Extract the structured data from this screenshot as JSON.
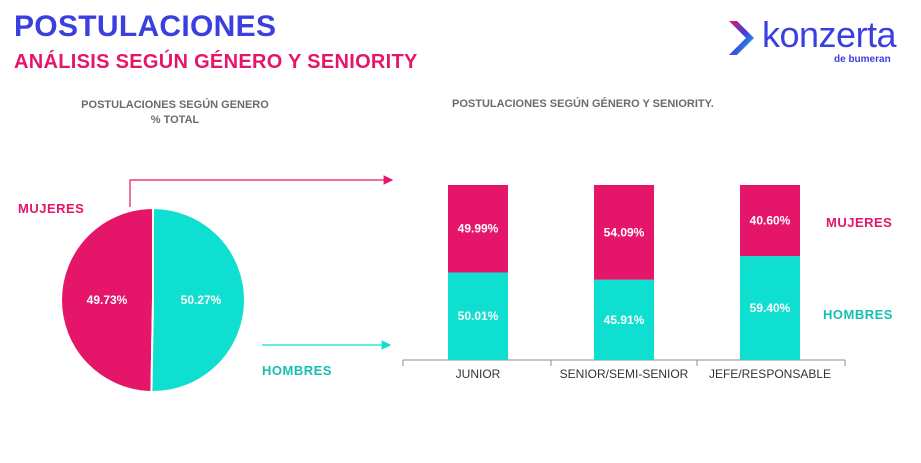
{
  "header": {
    "title": "POSTULACIONES",
    "subtitle": "ANÁLISIS SEGÚN GÉNERO Y SENIORITY"
  },
  "logo": {
    "word": "konzerta",
    "sub": "de bumeran"
  },
  "colors": {
    "mujeres": "#e5166a",
    "hombres": "#0fdfd0",
    "title_blue": "#3b3fe0",
    "axis": "#8c8c8c"
  },
  "labels": {
    "mujeres": "MUJERES",
    "hombres": "HOMBRES"
  },
  "chart_data": [
    {
      "type": "pie",
      "title": "POSTULACIONES SEGÚN GENERO",
      "subtitle": "% TOTAL",
      "slices": [
        {
          "name": "MUJERES",
          "value": 49.73,
          "label": "49.73%"
        },
        {
          "name": "HOMBRES",
          "value": 50.27,
          "label": "50.27%"
        }
      ]
    },
    {
      "type": "bar",
      "stacked": true,
      "title": "POSTULACIONES SEGÚN GÉNERO Y SENIORITY.",
      "categories": [
        "JUNIOR",
        "SENIOR/SEMI-SENIOR",
        "JEFE/RESPONSABLE"
      ],
      "series": [
        {
          "name": "HOMBRES",
          "values": [
            50.01,
            45.91,
            59.4
          ],
          "labels": [
            "50.01%",
            "45.91%",
            "59.40%"
          ]
        },
        {
          "name": "MUJERES",
          "values": [
            49.99,
            54.09,
            40.6
          ],
          "labels": [
            "49.99%",
            "54.09%",
            "40.60%"
          ]
        }
      ],
      "ylim": [
        0,
        100
      ]
    }
  ]
}
